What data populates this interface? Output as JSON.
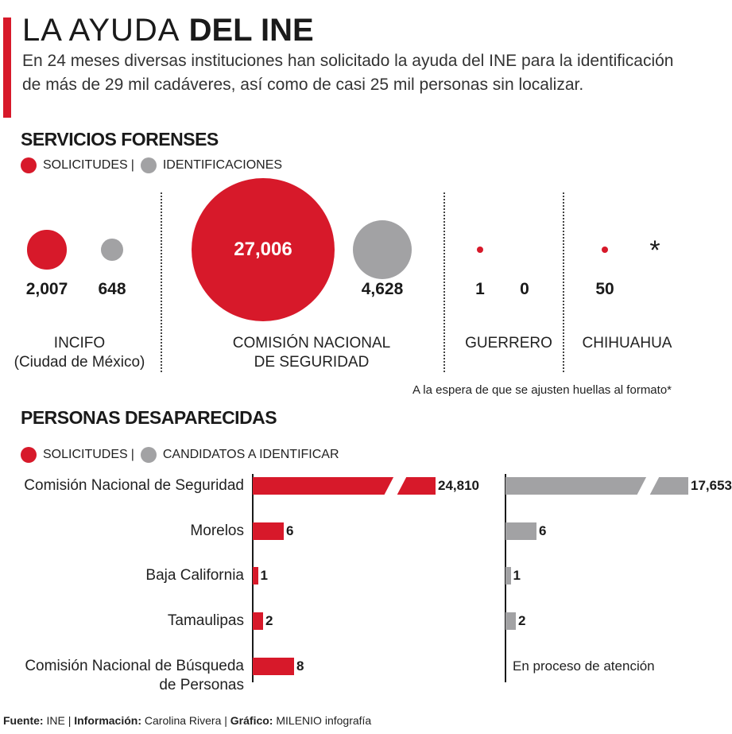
{
  "title_light": "LA AYUDA",
  "title_bold": "DEL INE",
  "subtitle": "En 24 meses diversas instituciones han solicitado la ayuda del INE para la identificación de más de 29 mil cadáveres, así como de casi 25 mil personas sin localizar.",
  "colors": {
    "solicitudes": "#d7192a",
    "secondary": "#a2a2a4"
  },
  "chart_data": [
    {
      "type": "bubble",
      "title": "SERVICIOS FORENSES",
      "legend": [
        "SOLICITUDES",
        "IDENTIFICACIONES"
      ],
      "legend_separator": "|",
      "groups": [
        {
          "label_line1": "INCIFO",
          "label_line2": "(Ciudad de México)",
          "solicitudes": 2007,
          "solicitudes_label": "2,007",
          "identificaciones": 648,
          "identificaciones_label": "648"
        },
        {
          "label_line1": "COMISIÓN NACIONAL",
          "label_line2": "DE SEGURIDAD",
          "solicitudes": 27006,
          "solicitudes_label": "27,006",
          "identificaciones": 4628,
          "identificaciones_label": "4,628"
        },
        {
          "label_line1": "GUERRERO",
          "label_line2": "",
          "solicitudes": 1,
          "solicitudes_label": "1",
          "identificaciones": 0,
          "identificaciones_label": "0"
        },
        {
          "label_line1": "CHIHUAHUA",
          "label_line2": "",
          "solicitudes": 50,
          "solicitudes_label": "50",
          "identificaciones": null,
          "identificaciones_label": "*"
        }
      ],
      "note": "A la espera de que se ajusten huellas al formato*"
    },
    {
      "type": "bar",
      "title": "PERSONAS DESAPARECIDAS",
      "legend": [
        "SOLICITUDES",
        "CANDIDATOS A IDENTIFICAR"
      ],
      "legend_separator": "|",
      "categories": [
        [
          "Comisión Nacional de Seguridad"
        ],
        [
          "Morelos"
        ],
        [
          "Baja California"
        ],
        [
          "Tamaulipas"
        ],
        [
          "Comisión Nacional de Búsqueda",
          "de Personas"
        ]
      ],
      "series": [
        {
          "name": "SOLICITUDES",
          "values": [
            24810,
            6,
            1,
            2,
            8
          ],
          "labels": [
            "24,810",
            "6",
            "1",
            "2",
            "8"
          ]
        },
        {
          "name": "CANDIDATOS A IDENTIFICAR",
          "values": [
            17653,
            6,
            1,
            2,
            null
          ],
          "labels": [
            "17,653",
            "6",
            "1",
            "2",
            ""
          ]
        }
      ],
      "pending_text": "En proceso de atención"
    }
  ],
  "footer": [
    {
      "key": "Fuente:",
      "value": "INE"
    },
    {
      "key": "Información:",
      "value": "Carolina Rivera"
    },
    {
      "key": "Gráfico:",
      "value": "MILENIO infografía"
    }
  ],
  "footer_separator": "|"
}
